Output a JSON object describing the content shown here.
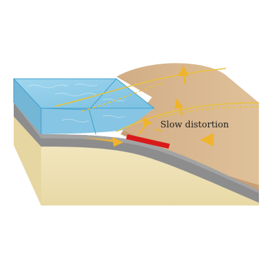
{
  "diagram": {
    "label": "Slow distortion",
    "colors": {
      "ocean": "#8ccbe6",
      "ocean_dark": "#6fb3d6",
      "oceanic_crust": "#8b8b8b",
      "overriding_plate": "#d6b48e",
      "ground": "#efe2b6",
      "locked_zone": "#d91a1a",
      "arrows": "#f0b42c"
    }
  }
}
